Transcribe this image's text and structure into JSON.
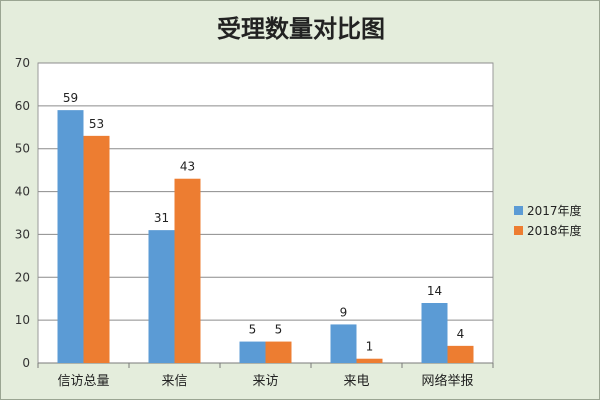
{
  "chart_data": {
    "type": "bar",
    "title": "受理数量对比图",
    "categories": [
      "信访总量",
      "来信",
      "来访",
      "来电",
      "网络举报"
    ],
    "series": [
      {
        "name": "2017年度",
        "values": [
          59,
          31,
          5,
          9,
          14
        ],
        "color": "#5b9bd5"
      },
      {
        "name": "2018年度",
        "values": [
          53,
          43,
          5,
          1,
          4
        ],
        "color": "#ed7d31"
      }
    ],
    "ylim": [
      0,
      70
    ],
    "yticks": [
      0,
      10,
      20,
      30,
      40,
      50,
      60,
      70
    ],
    "grid": true,
    "legend_position": "right",
    "xlabel": "",
    "ylabel": ""
  }
}
